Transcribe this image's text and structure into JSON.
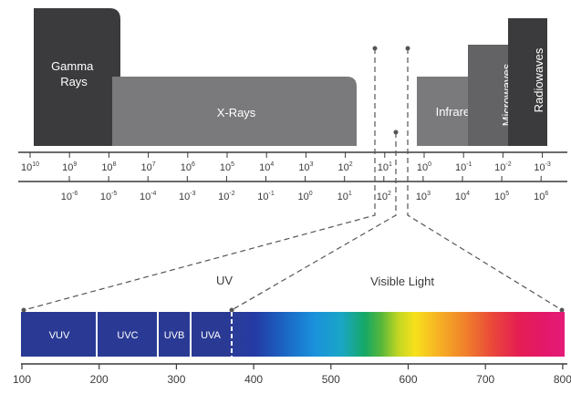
{
  "bands": {
    "gamma": [
      "Gamma",
      "Rays"
    ],
    "xrays": "X-Rays",
    "infrared": "Infrared",
    "microwaves": "Microwaves",
    "radiowaves": "Radiowaves"
  },
  "top_scale": [
    {
      "b": "10",
      "e": "10"
    },
    {
      "b": "10",
      "e": "9"
    },
    {
      "b": "10",
      "e": "8"
    },
    {
      "b": "10",
      "e": "7"
    },
    {
      "b": "10",
      "e": "6"
    },
    {
      "b": "10",
      "e": "5"
    },
    {
      "b": "10",
      "e": "4"
    },
    {
      "b": "10",
      "e": "3"
    },
    {
      "b": "10",
      "e": "2"
    },
    {
      "b": "10",
      "e": "1"
    },
    {
      "b": "10",
      "e": "0"
    },
    {
      "b": "10",
      "e": "-1"
    },
    {
      "b": "10",
      "e": "-2"
    },
    {
      "b": "10",
      "e": "-3"
    }
  ],
  "bottom_scale": [
    {
      "b": "10",
      "e": "-6"
    },
    {
      "b": "10",
      "e": "-5"
    },
    {
      "b": "10",
      "e": "-4"
    },
    {
      "b": "10",
      "e": "-3"
    },
    {
      "b": "10",
      "e": "-2"
    },
    {
      "b": "10",
      "e": "-1"
    },
    {
      "b": "10",
      "e": "0"
    },
    {
      "b": "10",
      "e": "1"
    },
    {
      "b": "10",
      "e": "2"
    },
    {
      "b": "10",
      "e": "3"
    },
    {
      "b": "10",
      "e": "4"
    },
    {
      "b": "10",
      "e": "5"
    },
    {
      "b": "10",
      "e": "6"
    }
  ],
  "region_labels": {
    "uv": "UV",
    "visible": "Visible Light"
  },
  "uv_bands": [
    "VUV",
    "UVC",
    "UVB",
    "UVA"
  ],
  "nm_axis": [
    "100",
    "200",
    "300",
    "400",
    "500",
    "600",
    "700",
    "800"
  ],
  "colors": {
    "gamma": "#3b3b3d",
    "xrays": "#7a7a7c",
    "infrared": "#7a7a7c",
    "microwaves": "#636365",
    "radiowaves": "#3b3b3d",
    "uv_fill": "#2a3a94",
    "axis": "#3a3a3a"
  }
}
